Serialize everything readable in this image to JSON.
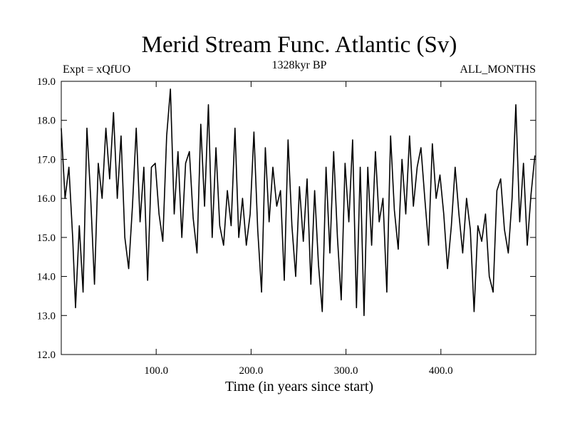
{
  "chart_data": {
    "type": "line",
    "title": "Merid Stream Func. Atlantic (Sv)",
    "subtitle_left": "Expt = xQfUO",
    "subtitle_center": "1328kyr BP",
    "subtitle_right": "ALL_MONTHS",
    "xlabel": "Time (in years since start)",
    "ylabel": "",
    "xlim": [
      0,
      500
    ],
    "ylim": [
      12.0,
      19.0
    ],
    "x_ticks": [
      {
        "value": 100,
        "label": "100.0"
      },
      {
        "value": 200,
        "label": "200.0"
      },
      {
        "value": 300,
        "label": "300.0"
      },
      {
        "value": 400,
        "label": "400.0"
      }
    ],
    "y_ticks": [
      {
        "value": 12.0,
        "label": "12.0"
      },
      {
        "value": 13.0,
        "label": "13.0"
      },
      {
        "value": 14.0,
        "label": "14.0"
      },
      {
        "value": 15.0,
        "label": "15.0"
      },
      {
        "value": 16.0,
        "label": "16.0"
      },
      {
        "value": 17.0,
        "label": "17.0"
      },
      {
        "value": 18.0,
        "label": "18.0"
      },
      {
        "value": 19.0,
        "label": "19.0"
      }
    ],
    "grid": false,
    "series": [
      {
        "name": "Merid Stream Func. Atlantic",
        "color": "#000000",
        "x": [
          0,
          4,
          8,
          12,
          15,
          19,
          23,
          27,
          31,
          35,
          39,
          43,
          47,
          51,
          55,
          59,
          63,
          67,
          71,
          75,
          79,
          83,
          87,
          91,
          95,
          99,
          103,
          107,
          111,
          115,
          119,
          123,
          127,
          131,
          135,
          139,
          143,
          147,
          151,
          155,
          159,
          163,
          167,
          171,
          175,
          179,
          183,
          187,
          191,
          195,
          199,
          203,
          207,
          211,
          215,
          219,
          223,
          227,
          231,
          235,
          239,
          243,
          247,
          251,
          255,
          259,
          263,
          267,
          271,
          275,
          279,
          283,
          287,
          291,
          295,
          299,
          303,
          307,
          311,
          315,
          319,
          323,
          327,
          331,
          335,
          339,
          343,
          347,
          351,
          355,
          359,
          363,
          367,
          371,
          375,
          379,
          383,
          387,
          391,
          395,
          399,
          403,
          407,
          411,
          415,
          419,
          423,
          427,
          431,
          435,
          439,
          443,
          447,
          451,
          455,
          459,
          463,
          467,
          471,
          475,
          479,
          483,
          487,
          491,
          495,
          499
        ],
        "values": [
          17.8,
          16.0,
          16.8,
          15.0,
          13.2,
          15.3,
          13.6,
          17.8,
          16.0,
          13.8,
          16.9,
          16.0,
          17.8,
          16.5,
          18.2,
          16.0,
          17.6,
          15.0,
          14.2,
          15.8,
          17.8,
          15.4,
          16.8,
          13.9,
          16.8,
          16.9,
          15.6,
          14.9,
          17.6,
          18.8,
          15.6,
          17.2,
          15.0,
          16.9,
          17.2,
          15.5,
          14.6,
          17.9,
          15.8,
          18.4,
          15.0,
          17.3,
          15.3,
          14.8,
          16.2,
          15.3,
          17.8,
          15.0,
          16.0,
          14.8,
          15.6,
          17.7,
          15.2,
          13.6,
          17.3,
          15.4,
          16.8,
          15.8,
          16.2,
          13.9,
          17.5,
          15.3,
          14.0,
          16.3,
          14.9,
          16.5,
          13.8,
          16.2,
          14.3,
          13.1,
          16.8,
          14.6,
          17.2,
          15.0,
          13.4,
          16.9,
          15.4,
          17.5,
          13.2,
          16.8,
          13.0,
          16.8,
          14.8,
          17.2,
          15.4,
          16.0,
          13.6,
          17.6,
          15.7,
          14.7,
          17.0,
          15.6,
          17.6,
          15.8,
          16.8,
          17.3,
          16.0,
          14.8,
          17.4,
          16.0,
          16.6,
          15.6,
          14.2,
          15.3,
          16.8,
          15.6,
          14.6,
          16.0,
          15.2,
          13.1,
          15.3,
          14.9,
          15.6,
          14.0,
          13.6,
          16.2,
          16.5,
          15.2,
          14.6,
          16.0,
          18.4,
          15.4,
          16.9,
          14.8,
          16.1,
          17.1
        ]
      }
    ]
  }
}
